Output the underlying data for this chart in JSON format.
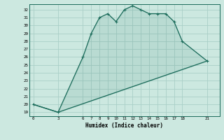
{
  "xlabel": "Humidex (Indice chaleur)",
  "background_color": "#cce8e0",
  "line_color": "#1a6b5a",
  "grid_color": "#aacfc7",
  "xticks": [
    0,
    3,
    6,
    7,
    8,
    9,
    10,
    11,
    12,
    13,
    14,
    15,
    16,
    17,
    18,
    21
  ],
  "yticks": [
    19,
    20,
    21,
    22,
    23,
    24,
    25,
    26,
    27,
    28,
    29,
    30,
    31,
    32
  ],
  "ylim": [
    18.5,
    32.7
  ],
  "xlim": [
    -0.5,
    22.5
  ],
  "curve1_x": [
    0,
    3,
    6,
    7,
    8,
    9,
    10,
    11,
    12,
    13,
    14,
    15,
    16,
    17,
    18,
    21
  ],
  "curve1_y": [
    20,
    19,
    26,
    29,
    31,
    31.5,
    30.5,
    32,
    32.5,
    32,
    31.5,
    31.5,
    31.5,
    30.5,
    28,
    25.5
  ],
  "curve2_x": [
    0,
    3,
    21
  ],
  "curve2_y": [
    20,
    19,
    25.5
  ]
}
